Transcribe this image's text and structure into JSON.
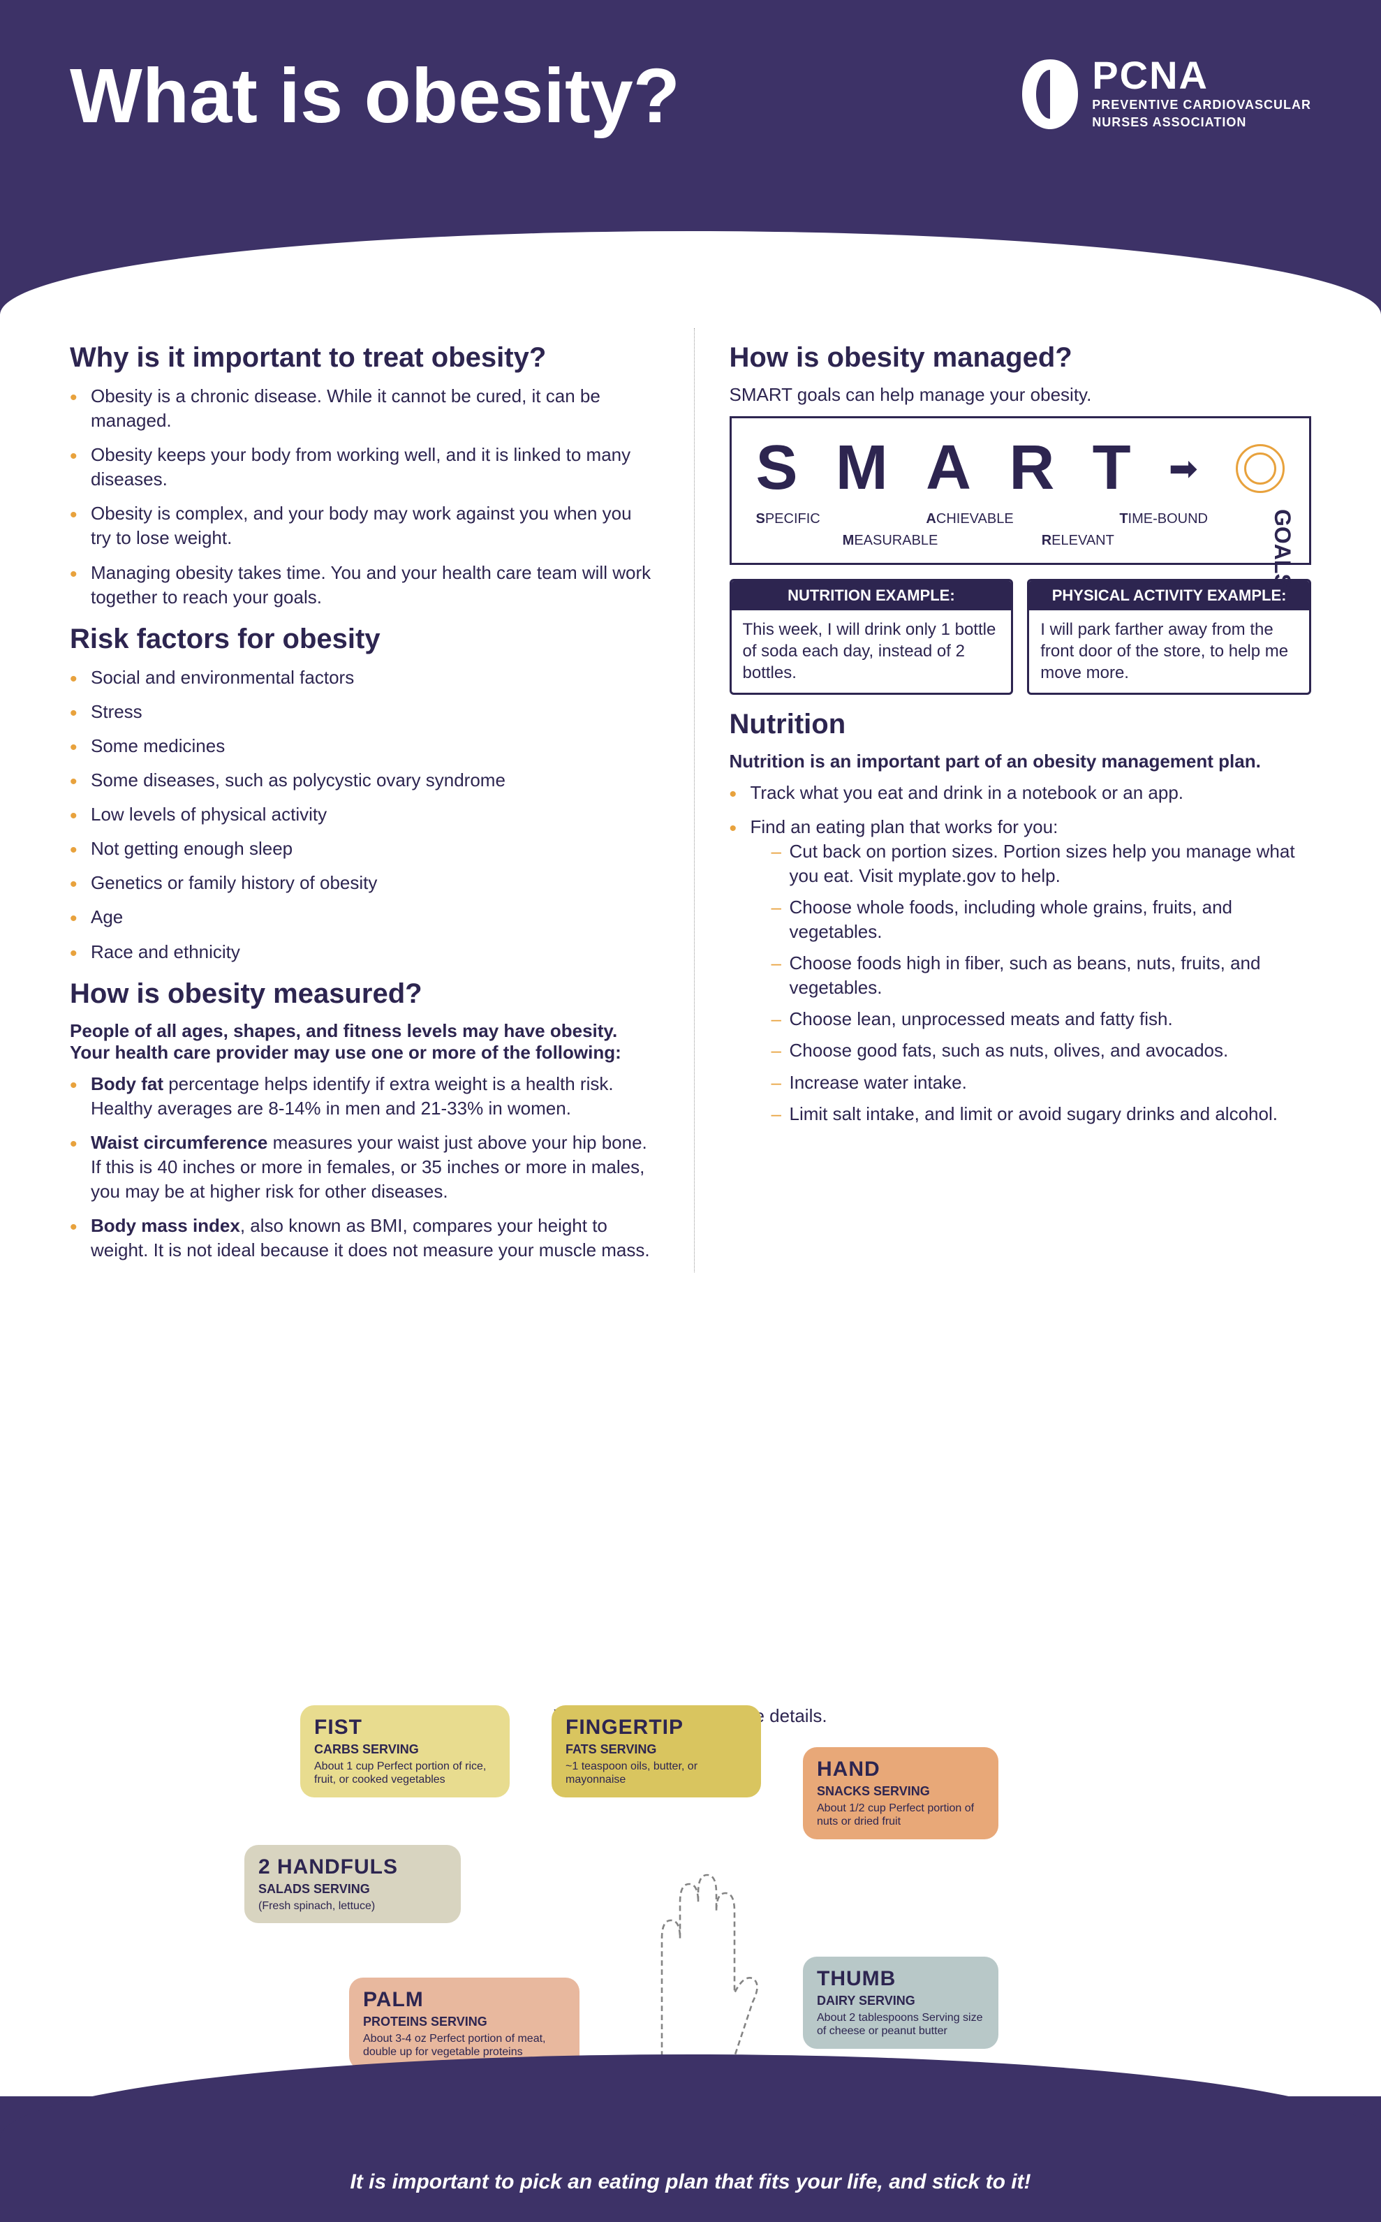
{
  "header": {
    "title": "What is obesity?",
    "logo_acronym": "PCNA",
    "logo_line1": "PREVENTIVE CARDIOVASCULAR",
    "logo_line2": "NURSES ASSOCIATION"
  },
  "left": {
    "s1_heading": "Why is it important to treat obesity?",
    "s1_items": [
      "Obesity is a chronic disease. While it cannot be cured, it can be managed.",
      "Obesity keeps your body from working well, and it is linked to many diseases.",
      "Obesity is complex, and your body may work against you when you try to lose weight.",
      "Managing obesity takes time. You and your health care team will work together to reach your goals."
    ],
    "s2_heading": "Risk factors for obesity",
    "s2_items": [
      "Social and environmental factors",
      "Stress",
      "Some medicines",
      "Some diseases, such as polycystic ovary syndrome",
      "Low levels of physical activity",
      "Not getting enough sleep",
      "Genetics or family history of obesity",
      "Age",
      "Race and ethnicity"
    ],
    "s3_heading": "How is obesity measured?",
    "s3_intro": "People of all ages, shapes, and fitness levels may have obesity. Your health care provider may use one or more of the following:",
    "s3_items": [
      {
        "lead": "Body fat",
        "rest": " percentage helps identify if extra weight is a health risk. Healthy averages are 8-14% in men and 21-33% in women."
      },
      {
        "lead": "Waist circumference",
        "rest": " measures your waist just above your hip bone. If this is 40 inches or more in females, or 35 inches or more in males, you may be at higher risk for other diseases."
      },
      {
        "lead": "Body mass index",
        "rest": ", also known as BMI, compares your height to weight. It is not ideal because it does not measure your muscle mass."
      }
    ]
  },
  "right": {
    "s1_heading": "How is obesity managed?",
    "s1_intro": "SMART goals can help manage your obesity.",
    "smart": {
      "letters": [
        "S",
        "M",
        "A",
        "R",
        "T"
      ],
      "labels": [
        {
          "l": "S",
          "w": "PECIFIC"
        },
        {
          "l": "M",
          "w": "EASURABLE"
        },
        {
          "l": "A",
          "w": "CHIEVABLE"
        },
        {
          "l": "R",
          "w": "ELEVANT"
        },
        {
          "l": "T",
          "w": "IME-BOUND"
        }
      ],
      "goals": "GOALS"
    },
    "ex1_head": "NUTRITION EXAMPLE:",
    "ex1_body": "This week, I will drink only 1 bottle of soda each day, instead of 2 bottles.",
    "ex2_head": "PHYSICAL ACTIVITY EXAMPLE:",
    "ex2_body": "I will park farther away from the front door of the store, to help me move more.",
    "s2_heading": "Nutrition",
    "s2_intro": "Nutrition is an important part of an obesity management plan.",
    "s2_b1": "Track what you eat and drink in a notebook or an app.",
    "s2_b2": "Find an eating plan that works for you:",
    "s2_sub": [
      "Cut back on portion sizes. Portion sizes help you manage what you eat. Visit myplate.gov to help.",
      "Choose whole foods, including whole grains, fruits, and vegetables.",
      "Choose foods high in fiber, such as beans, nuts, fruits, and vegetables.",
      "Choose lean, unprocessed meats and fatty fish.",
      "Choose good fats, such as nuts, olives, and avocados.",
      "Increase water intake.",
      "Limit salt intake, and limit or avoid sugary drinks and alcohol."
    ]
  },
  "portions": {
    "fist": {
      "t": "FIST",
      "s": "CARBS SERVING",
      "d": "About 1 cup\nPerfect portion of rice, fruit, or cooked vegetables"
    },
    "fingertip": {
      "t": "FINGERTIP",
      "s": "FATS SERVING",
      "d": "~1 teaspoon\noils, butter, or mayonnaise"
    },
    "hand": {
      "t": "HAND",
      "s": "SNACKS SERVING",
      "d": "About 1/2 cup\nPerfect portion of nuts or dried fruit"
    },
    "handfuls": {
      "t": "2 HANDFULS",
      "s": "SALADS SERVING",
      "d": "(Fresh spinach, lettuce)"
    },
    "palm": {
      "t": "PALM",
      "s": "PROTEINS SERVING",
      "d": "About 3-4 oz\nPerfect portion of meat, double up for vegetable proteins"
    },
    "thumb": {
      "t": "THUMB",
      "s": "DAIRY SERVING",
      "d": "About 2 tablespoons\nServing size of cheese or peanut butter"
    }
  },
  "footer_note": "Visit nutrition.gov for more details.",
  "footer_bar": "It is important to pick an eating plan that fits your life, and stick to it!"
}
